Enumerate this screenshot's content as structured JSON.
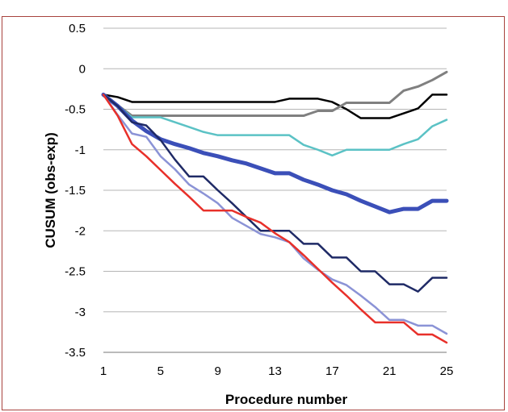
{
  "chart_data": {
    "type": "line",
    "xlabel": "Procedure number",
    "ylabel": "CUSUM (obs-exp)",
    "xlim": [
      1,
      25
    ],
    "ylim": [
      -3.5,
      0.5
    ],
    "x_ticks": [
      1,
      5,
      9,
      13,
      17,
      21,
      25
    ],
    "y_ticks": [
      0.5,
      0,
      -0.5,
      -1,
      -1.5,
      -2,
      -2.5,
      -3,
      -3.5
    ],
    "y_tick_labels": [
      "0.5",
      "0",
      "-0.5",
      "-1",
      "-1.5",
      "-2",
      "-2.5",
      "-3",
      "-3.5"
    ],
    "grid": "horizontal",
    "x": [
      1,
      2,
      3,
      4,
      5,
      6,
      7,
      8,
      9,
      10,
      11,
      12,
      13,
      14,
      15,
      16,
      17,
      18,
      19,
      20,
      21,
      22,
      23,
      24,
      25
    ],
    "series": [
      {
        "color": "#000000",
        "width": 2.5,
        "values": [
          -0.32,
          -0.35,
          -0.41,
          -0.41,
          -0.41,
          -0.41,
          -0.41,
          -0.41,
          -0.41,
          -0.41,
          -0.41,
          -0.41,
          -0.41,
          -0.37,
          -0.37,
          -0.37,
          -0.41,
          -0.5,
          -0.61,
          -0.61,
          -0.61,
          -0.55,
          -0.49,
          -0.32,
          -0.32
        ]
      },
      {
        "color": "#808080",
        "width": 3,
        "values": [
          -0.32,
          -0.45,
          -0.58,
          -0.58,
          -0.58,
          -0.58,
          -0.58,
          -0.58,
          -0.58,
          -0.58,
          -0.58,
          -0.58,
          -0.58,
          -0.58,
          -0.58,
          -0.52,
          -0.52,
          -0.42,
          -0.42,
          -0.42,
          -0.42,
          -0.27,
          -0.22,
          -0.14,
          -0.04
        ]
      },
      {
        "color": "#5bc2c5",
        "width": 2.5,
        "values": [
          -0.32,
          -0.45,
          -0.6,
          -0.6,
          -0.6,
          -0.66,
          -0.72,
          -0.78,
          -0.82,
          -0.82,
          -0.82,
          -0.82,
          -0.82,
          -0.82,
          -0.94,
          -1.0,
          -1.07,
          -1.0,
          -1.0,
          -1.0,
          -1.0,
          -0.93,
          -0.87,
          -0.71,
          -0.63
        ]
      },
      {
        "color": "#3b4fb8",
        "width": 5,
        "values": [
          -0.32,
          -0.46,
          -0.64,
          -0.77,
          -0.87,
          -0.93,
          -0.98,
          -1.04,
          -1.08,
          -1.13,
          -1.17,
          -1.23,
          -1.29,
          -1.29,
          -1.37,
          -1.43,
          -1.5,
          -1.55,
          -1.63,
          -1.7,
          -1.77,
          -1.73,
          -1.73,
          -1.63,
          -1.63
        ]
      },
      {
        "color": "#1f2a66",
        "width": 2.5,
        "values": [
          -0.32,
          -0.46,
          -0.66,
          -0.7,
          -0.88,
          -1.12,
          -1.33,
          -1.33,
          -1.5,
          -1.66,
          -1.83,
          -2.0,
          -2.0,
          -2.0,
          -2.16,
          -2.16,
          -2.33,
          -2.33,
          -2.5,
          -2.5,
          -2.66,
          -2.66,
          -2.75,
          -2.58,
          -2.58
        ]
      },
      {
        "color": "#8b93d6",
        "width": 2.5,
        "values": [
          -0.32,
          -0.57,
          -0.8,
          -0.84,
          -1.08,
          -1.24,
          -1.43,
          -1.54,
          -1.66,
          -1.84,
          -1.94,
          -2.04,
          -2.08,
          -2.14,
          -2.34,
          -2.48,
          -2.6,
          -2.67,
          -2.8,
          -2.94,
          -3.1,
          -3.1,
          -3.17,
          -3.17,
          -3.27
        ]
      },
      {
        "color": "#e8302a",
        "width": 2.5,
        "values": [
          -0.32,
          -0.58,
          -0.93,
          -1.08,
          -1.25,
          -1.42,
          -1.58,
          -1.75,
          -1.75,
          -1.75,
          -1.83,
          -1.9,
          -2.03,
          -2.14,
          -2.3,
          -2.47,
          -2.64,
          -2.8,
          -2.97,
          -3.13,
          -3.13,
          -3.13,
          -3.28,
          -3.28,
          -3.38
        ]
      }
    ]
  }
}
